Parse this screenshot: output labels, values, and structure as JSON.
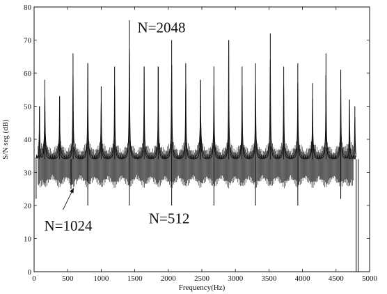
{
  "chart_data": {
    "type": "line",
    "title": "",
    "xlabel": "Frequency(Hz)",
    "ylabel": "S/N seg (dB)",
    "xlim": [
      0,
      5000
    ],
    "ylim": [
      0,
      80
    ],
    "x_ticks": [
      0,
      500,
      1000,
      1500,
      2000,
      2500,
      3000,
      3500,
      4000,
      4500,
      5000
    ],
    "y_ticks": [
      0,
      10,
      20,
      30,
      40,
      50,
      60,
      70,
      80
    ],
    "grid": false,
    "legend": "none",
    "annotations": [
      {
        "text": "N=2048",
        "series": "N=2048"
      },
      {
        "text": "N=1024",
        "series": "N=1024",
        "arrow": true
      },
      {
        "text": "N=512",
        "series": "N=512"
      }
    ],
    "series": [
      {
        "name": "N=2048",
        "baseline": 34,
        "peaks": [
          {
            "x": 80,
            "y": 50
          },
          {
            "x": 160,
            "y": 58
          },
          {
            "x": 380,
            "y": 53
          },
          {
            "x": 580,
            "y": 66
          },
          {
            "x": 800,
            "y": 63
          },
          {
            "x": 1000,
            "y": 56
          },
          {
            "x": 1200,
            "y": 62
          },
          {
            "x": 1420,
            "y": 76
          },
          {
            "x": 1640,
            "y": 62
          },
          {
            "x": 1850,
            "y": 62
          },
          {
            "x": 2050,
            "y": 70
          },
          {
            "x": 2260,
            "y": 63
          },
          {
            "x": 2480,
            "y": 58
          },
          {
            "x": 2680,
            "y": 62
          },
          {
            "x": 2900,
            "y": 70
          },
          {
            "x": 3100,
            "y": 62
          },
          {
            "x": 3300,
            "y": 63
          },
          {
            "x": 3520,
            "y": 72
          },
          {
            "x": 3720,
            "y": 62
          },
          {
            "x": 3930,
            "y": 63
          },
          {
            "x": 4150,
            "y": 57
          },
          {
            "x": 4350,
            "y": 66
          },
          {
            "x": 4570,
            "y": 61
          },
          {
            "x": 4700,
            "y": 52
          },
          {
            "x": 4780,
            "y": 50
          }
        ],
        "dips": [
          {
            "x": 30,
            "y": 22
          },
          {
            "x": 550,
            "y": 25
          },
          {
            "x": 800,
            "y": 20
          },
          {
            "x": 1420,
            "y": 20
          },
          {
            "x": 2050,
            "y": 20
          },
          {
            "x": 2680,
            "y": 20
          },
          {
            "x": 3300,
            "y": 20
          },
          {
            "x": 3930,
            "y": 20
          },
          {
            "x": 4570,
            "y": 22
          },
          {
            "x": 4800,
            "y": 0
          },
          {
            "x": 4830,
            "y": 0
          }
        ]
      },
      {
        "name": "N=1024",
        "baseline": 34,
        "peaks": [
          {
            "x": 160,
            "y": 48
          },
          {
            "x": 380,
            "y": 46
          },
          {
            "x": 580,
            "y": 48
          },
          {
            "x": 800,
            "y": 47
          },
          {
            "x": 1000,
            "y": 45
          },
          {
            "x": 1200,
            "y": 46
          },
          {
            "x": 1420,
            "y": 48
          },
          {
            "x": 1640,
            "y": 46
          },
          {
            "x": 1850,
            "y": 46
          },
          {
            "x": 2050,
            "y": 48
          },
          {
            "x": 2260,
            "y": 46
          },
          {
            "x": 2480,
            "y": 50
          },
          {
            "x": 2680,
            "y": 47
          },
          {
            "x": 2900,
            "y": 48
          },
          {
            "x": 3100,
            "y": 46
          },
          {
            "x": 3300,
            "y": 47
          },
          {
            "x": 3520,
            "y": 49
          },
          {
            "x": 3720,
            "y": 46
          },
          {
            "x": 3930,
            "y": 47
          },
          {
            "x": 4150,
            "y": 45
          },
          {
            "x": 4350,
            "y": 47
          },
          {
            "x": 4570,
            "y": 46
          }
        ]
      },
      {
        "name": "N=512",
        "baseline": 32,
        "ripple_range": [
          25,
          40
        ]
      }
    ]
  }
}
